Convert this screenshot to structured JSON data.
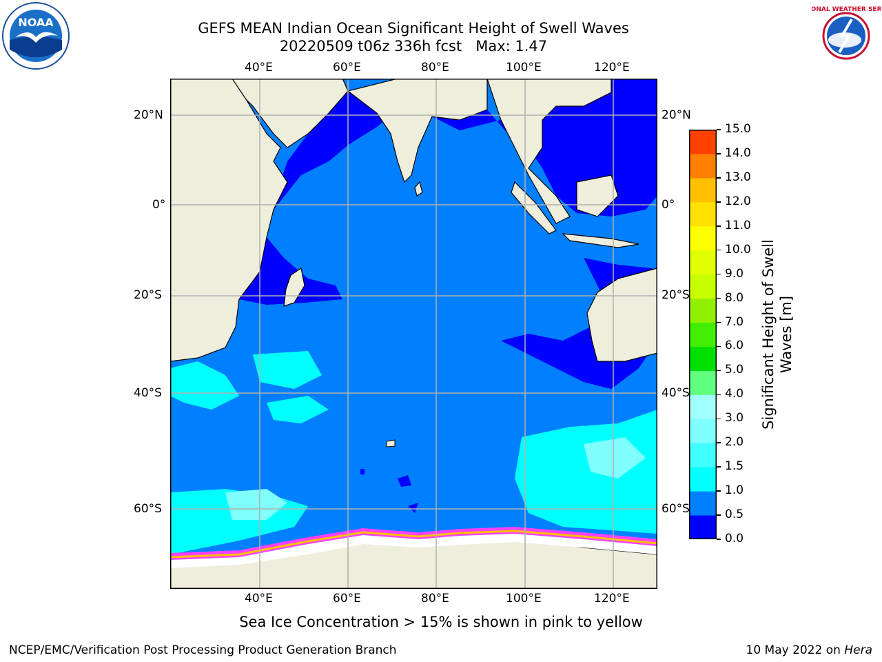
{
  "title": {
    "line1": "GEFS MEAN Indian Ocean Significant Height of Swell Waves",
    "line2": "20220509 t06z 336h fcst   Max: 1.47"
  },
  "axes": {
    "lon_ticks": [
      "40°E",
      "60°E",
      "80°E",
      "100°E",
      "120°E"
    ],
    "lat_ticks": [
      "20°N",
      "0°",
      "20°S",
      "40°S",
      "60°S"
    ]
  },
  "colorbar": {
    "title_line1": "Significant Height of Swell",
    "title_line2": "Waves [m]",
    "labels": [
      "0.0",
      "0.5",
      "1.0",
      "1.5",
      "2.0",
      "3.0",
      "4.0",
      "5.0",
      "6.0",
      "7.0",
      "8.0",
      "9.0",
      "10.0",
      "11.0",
      "12.0",
      "13.0",
      "14.0",
      "15.0"
    ],
    "colors": [
      "#0000ff",
      "#0080ff",
      "#00ffff",
      "#40ffff",
      "#80ffff",
      "#a0ffff",
      "#60ff80",
      "#00e000",
      "#40f000",
      "#90f000",
      "#c8ff00",
      "#e0ff00",
      "#ffff00",
      "#ffe000",
      "#ffc000",
      "#ff8000",
      "#ff4000",
      "#ff0000"
    ]
  },
  "caption": "Sea Ice Concentration > 15% is shown in pink to yellow",
  "footer": {
    "left": "NCEP/EMC/Verification Post Processing Product Generation Branch",
    "right_prefix": "10 May 2022 on ",
    "right_italic": "Hera"
  },
  "logos": {
    "noaa_text": "NOAA",
    "nws_text": "NATIONAL WEATHER SERVICE"
  },
  "map_colors": {
    "land": "#efeedd",
    "deep_blue": "#0000ff",
    "mid_blue": "#0080ff",
    "cyan": "#00ffff",
    "light_cyan": "#80ffff",
    "grid": "#b0b0b0",
    "ice_pink": "#ff40ff",
    "ice_yellow": "#ffc000"
  },
  "chart_data": {
    "type": "heatmap",
    "title": "GEFS MEAN Indian Ocean Significant Height of Swell Waves",
    "subtitle": "20220509 t06z 336h fcst   Max: 1.47",
    "lon_range": [
      20,
      130
    ],
    "lat_range": [
      -85,
      30
    ],
    "max_value": 1.47,
    "colorbar_range": [
      0,
      15
    ],
    "colorbar_label": "Significant Height of Swell Waves [m]"
  }
}
